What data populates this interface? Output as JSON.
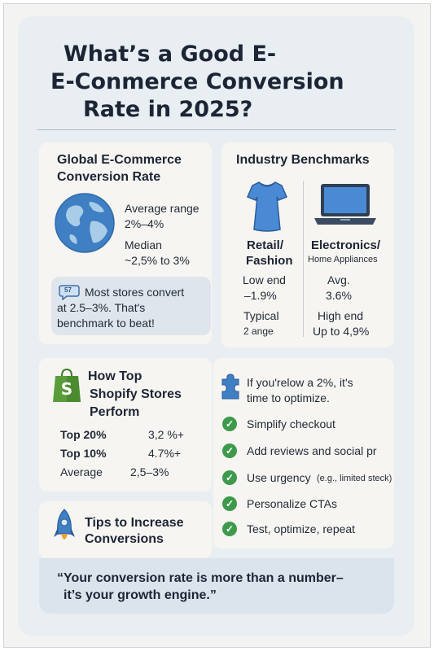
{
  "title": {
    "line1": "What’s a Good E-",
    "line2": "E-Conmerce Conversion",
    "line3": "Rate in 2025?"
  },
  "global": {
    "heading_l1": "Global E-Commerce",
    "heading_l2": "Conversion Rate",
    "avg_label": "Average range",
    "avg_value": "2%–4%",
    "median_label": "Median",
    "median_value": "~2,5% to 3%",
    "callout_icon": "chat-bubble-icon",
    "callout_badge": "57",
    "callout_l1": "Most stores convert",
    "callout_l2": "at 2.5–3%. That's",
    "callout_l3": "benchmark to beat!"
  },
  "industry": {
    "heading": "Industry Benchmarks",
    "retail": {
      "icon": "dress-icon",
      "label_l1": "Retail/",
      "label_l2": "Fashion",
      "low_label": "Low end",
      "low_value": "–1.9%",
      "typical_label": "Typical",
      "typical_value": "2 ange"
    },
    "electronics": {
      "icon": "laptop-icon",
      "label_l1": "Electronics/",
      "label_l2": "Home Appliances",
      "avg_label": "Avg.",
      "avg_value": "3.6%",
      "high_label": "High end",
      "high_value": "Up to 4,9%"
    }
  },
  "shopify": {
    "icon": "shopify-bag-icon",
    "heading_l1": "How Top",
    "heading_l2": "Shopify Stores",
    "heading_l3": "Perform",
    "rows": [
      {
        "label": "Top 20%",
        "value": "3,2 %+"
      },
      {
        "label": "Top 10%",
        "value": "4.7%+"
      },
      {
        "label": "Average",
        "value": "2,5–3%"
      }
    ]
  },
  "optimize": {
    "icon": "puzzle-icon",
    "intro_l1": "If you'relow a 2%, it's",
    "intro_l2": "time to optimize.",
    "items": [
      {
        "text": "Simplify checkout",
        "note": ""
      },
      {
        "text": "Add reviews and social pr",
        "note": ""
      },
      {
        "text": "Use urgency",
        "note": "(e.g., limited steck)"
      },
      {
        "text": "Personalize CTAs",
        "note": ""
      },
      {
        "text": "Test, optimize, repeat",
        "note": ""
      }
    ]
  },
  "tips": {
    "icon": "rocket-icon",
    "heading_l1": "Tips to Increase",
    "heading_l2": "Conversions"
  },
  "quote": {
    "l1": "“Your conversion rate is more than a number–",
    "l2": "it’s your growth engine.”"
  },
  "colors": {
    "outer_bg": "#e9eef3",
    "card_bg": "#f7f5f1",
    "callout_bg": "#dfe5ec",
    "globe_blue": "#3f7fc4",
    "globe_land": "#a9cde8",
    "dress_blue": "#4a8ad4",
    "shopify_green": "#5a9c3a",
    "check_green": "#3d9a4b"
  }
}
